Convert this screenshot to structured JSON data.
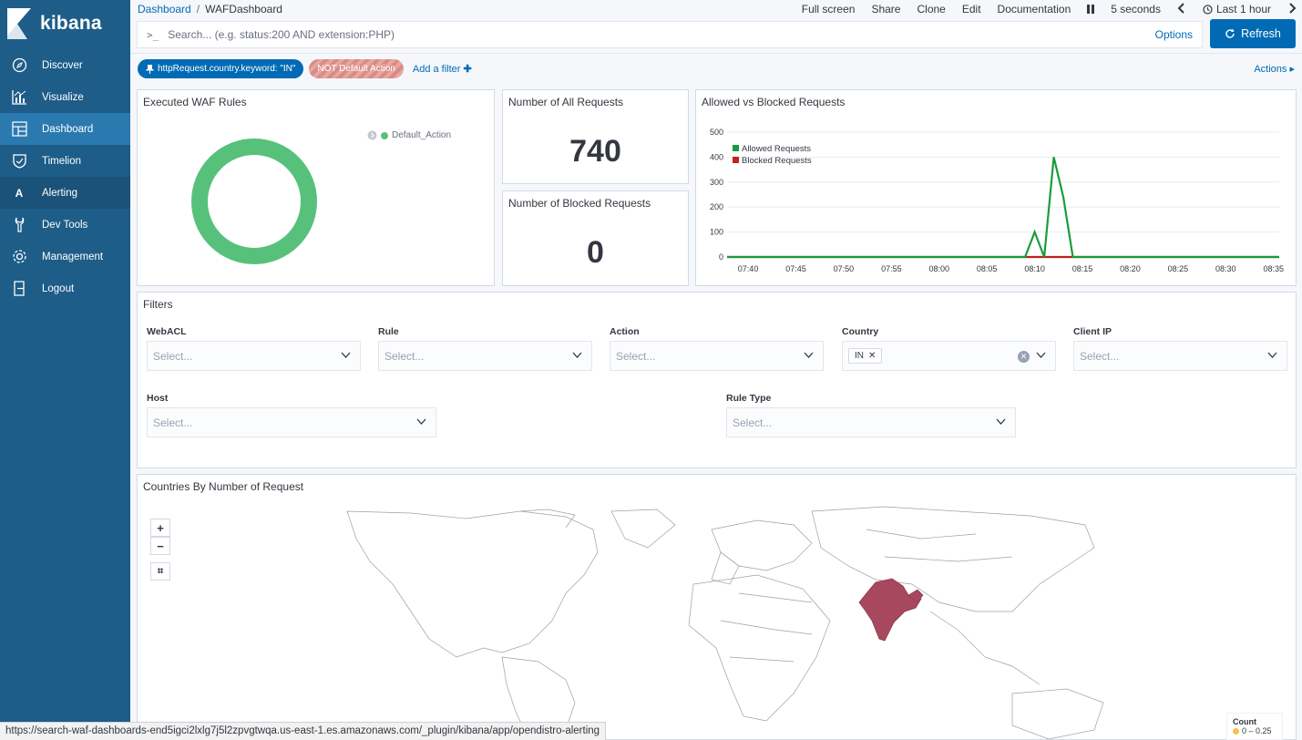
{
  "app": {
    "logo_text": "kibana"
  },
  "sidebar": {
    "items": [
      {
        "label": "Discover",
        "icon": "compass-icon"
      },
      {
        "label": "Visualize",
        "icon": "chart-icon"
      },
      {
        "label": "Dashboard",
        "icon": "dashboard-icon"
      },
      {
        "label": "Timelion",
        "icon": "shield-icon"
      },
      {
        "label": "Alerting",
        "icon": "alerting-icon"
      },
      {
        "label": "Dev Tools",
        "icon": "wrench-icon"
      },
      {
        "label": "Management",
        "icon": "gear-icon"
      },
      {
        "label": "Logout",
        "icon": "logout-icon"
      }
    ]
  },
  "breadcrumb": {
    "root": "Dashboard",
    "current": "WAFDashboard"
  },
  "top_actions": {
    "full_screen": "Full screen",
    "share": "Share",
    "clone": "Clone",
    "edit": "Edit",
    "documentation": "Documentation",
    "interval": "5 seconds",
    "time_range": "Last 1 hour"
  },
  "query": {
    "placeholder": "Search... (e.g. status:200 AND extension:PHP)",
    "options": "Options",
    "refresh": "Refresh"
  },
  "filters_bar": {
    "pill_country": "httpRequest.country.keyword: \"IN\"",
    "pill_not": "NOT Default Action",
    "add_filter": "Add a filter",
    "actions": "Actions"
  },
  "panels": {
    "waf_rules": {
      "title": "Executed WAF Rules",
      "legend": "Default_Action"
    },
    "all_requests": {
      "title": "Number of All Requests",
      "value": "740"
    },
    "blocked_requests": {
      "title": "Number of Blocked Requests",
      "value": "0"
    },
    "allowed_vs_blocked": {
      "title": "Allowed vs Blocked Requests"
    },
    "filters": {
      "title": "Filters",
      "webacl": {
        "label": "WebACL",
        "placeholder": "Select..."
      },
      "rule": {
        "label": "Rule",
        "placeholder": "Select..."
      },
      "action": {
        "label": "Action",
        "placeholder": "Select..."
      },
      "country": {
        "label": "Country",
        "chip": "IN"
      },
      "client_ip": {
        "label": "Client IP",
        "placeholder": "Select..."
      },
      "host": {
        "label": "Host",
        "placeholder": "Select..."
      },
      "rule_type": {
        "label": "Rule Type",
        "placeholder": "Select..."
      }
    },
    "countries_map": {
      "title": "Countries By Number of Request",
      "legend_title": "Count",
      "legend_range": "0 – 0.25"
    }
  },
  "status_url": "https://search-waf-dashboards-end5igci2lxlg7j5l2zpvgtwqa.us-east-1.es.amazonaws.com/_plugin/kibana/app/opendistro-alerting",
  "colors": {
    "allowed": "#1a9c3e",
    "blocked": "#c21f1f",
    "donut": "#57c17b",
    "india": "#a8485e"
  },
  "chart_data": {
    "type": "line",
    "title": "Allowed vs Blocked Requests",
    "categories": [
      "07:40",
      "07:45",
      "07:50",
      "07:55",
      "08:00",
      "08:05",
      "08:10",
      "08:15",
      "08:20",
      "08:25",
      "08:30",
      "08:35"
    ],
    "ylim": [
      0,
      500
    ],
    "yticks": [
      0,
      100,
      200,
      300,
      400,
      500
    ],
    "xlim": [
      37.8,
      95.6
    ],
    "series": [
      {
        "name": "Allowed Requests",
        "color": "#1a9c3e",
        "points": [
          [
            37.8,
            0
          ],
          [
            69,
            0
          ],
          [
            70,
            100
          ],
          [
            71,
            0
          ],
          [
            72,
            400
          ],
          [
            73,
            240
          ],
          [
            74,
            0
          ],
          [
            95.6,
            0
          ]
        ]
      },
      {
        "name": "Blocked Requests",
        "color": "#c21f1f",
        "points": [
          [
            37.8,
            0
          ],
          [
            95.6,
            0
          ]
        ]
      }
    ]
  }
}
